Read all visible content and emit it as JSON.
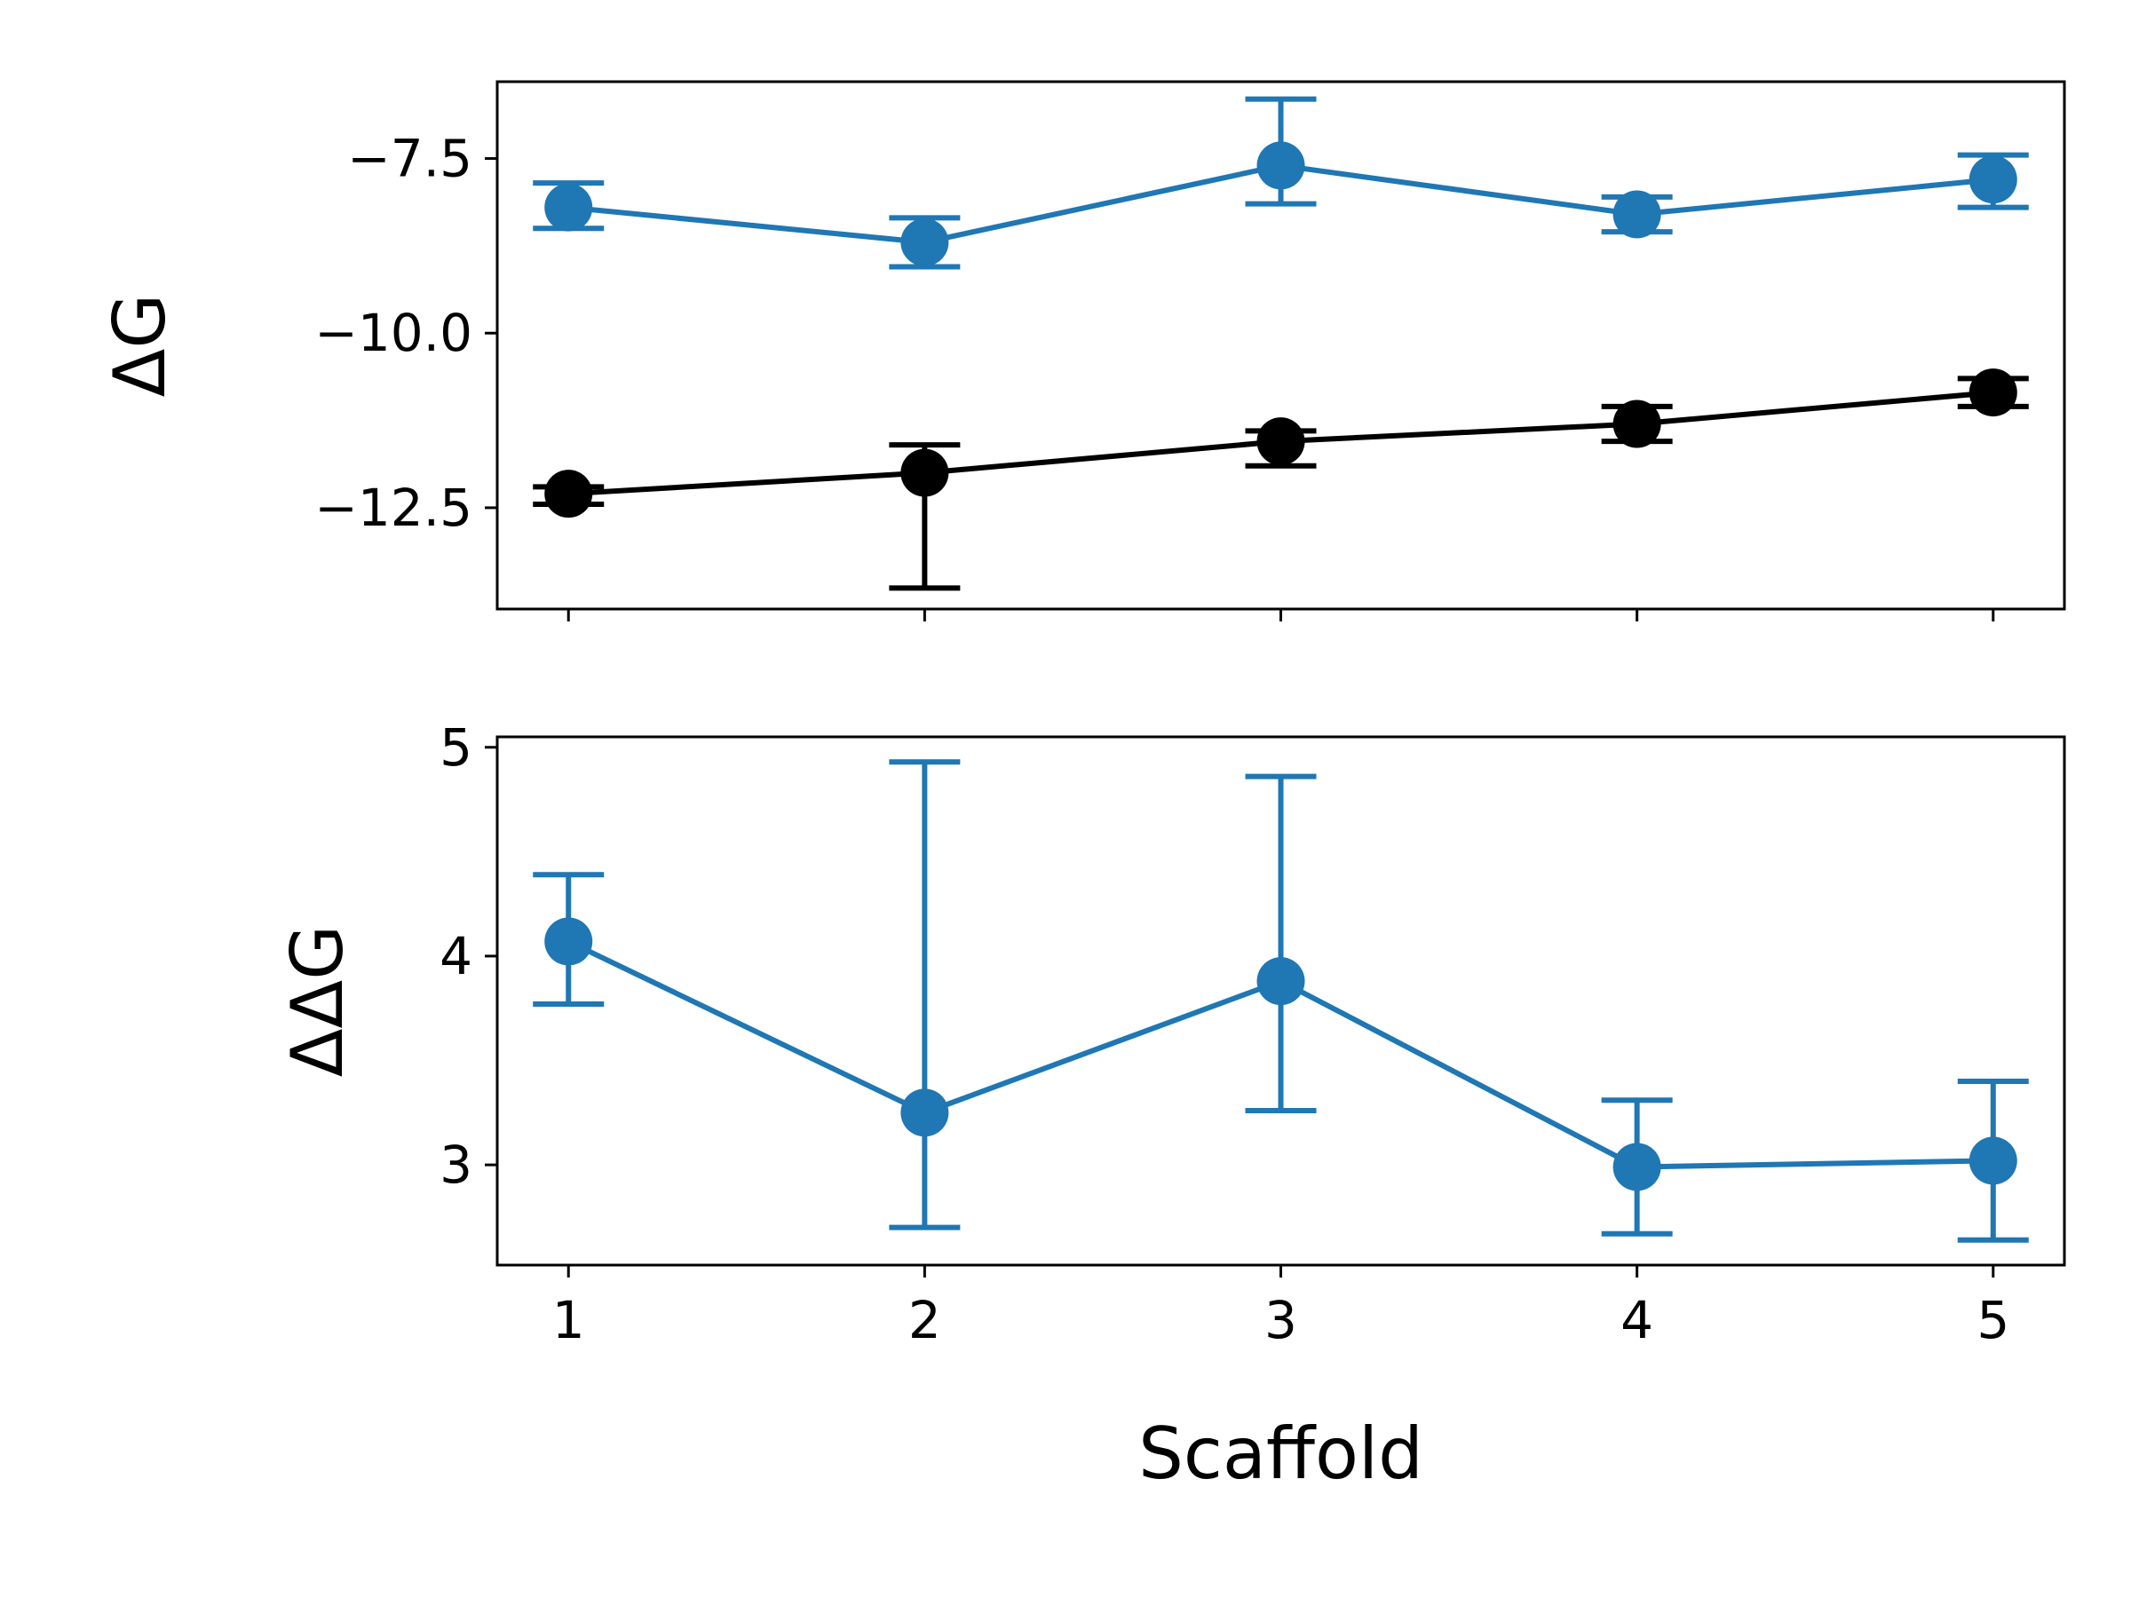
{
  "chart_data": [
    {
      "type": "line",
      "panel": "top",
      "ylabel": "ΔG",
      "xlabel": "",
      "x": [
        1,
        2,
        3,
        4,
        5
      ],
      "xlim": [
        0.8,
        5.2
      ],
      "ylim": [
        -13.95,
        -6.4
      ],
      "yticks": [
        -7.5,
        -10.0,
        -12.5
      ],
      "ytick_labels": [
        "−7.5",
        "−10.0",
        "−12.5"
      ],
      "show_xtick_labels": false,
      "grid": false,
      "series": [
        {
          "color": "#1f77b4",
          "values": [
            -8.2,
            -8.7,
            -7.6,
            -8.3,
            -7.8
          ],
          "err_low": [
            0.3,
            0.35,
            0.55,
            0.25,
            0.4
          ],
          "err_high": [
            0.35,
            0.35,
            0.95,
            0.25,
            0.35
          ]
        },
        {
          "color": "#000000",
          "values": [
            -12.3,
            -12.0,
            -11.55,
            -11.3,
            -10.85
          ],
          "err_low": [
            0.15,
            1.65,
            0.35,
            0.25,
            0.2
          ],
          "err_high": [
            0.1,
            0.4,
            0.15,
            0.25,
            0.2
          ]
        }
      ]
    },
    {
      "type": "line",
      "panel": "bottom",
      "ylabel": "ΔΔG",
      "xlabel": "Scaffold",
      "x": [
        1,
        2,
        3,
        4,
        5
      ],
      "xlim": [
        0.8,
        5.2
      ],
      "ylim": [
        2.52,
        5.05
      ],
      "yticks": [
        3,
        4,
        5
      ],
      "ytick_labels": [
        "3",
        "4",
        "5"
      ],
      "xtick_labels": [
        "1",
        "2",
        "3",
        "4",
        "5"
      ],
      "grid": false,
      "series": [
        {
          "color": "#1f77b4",
          "values": [
            4.07,
            3.25,
            3.88,
            2.99,
            3.02
          ],
          "err_low": [
            0.3,
            0.55,
            0.62,
            0.32,
            0.38
          ],
          "err_high": [
            0.32,
            1.68,
            0.98,
            0.32,
            0.38
          ]
        }
      ]
    }
  ]
}
